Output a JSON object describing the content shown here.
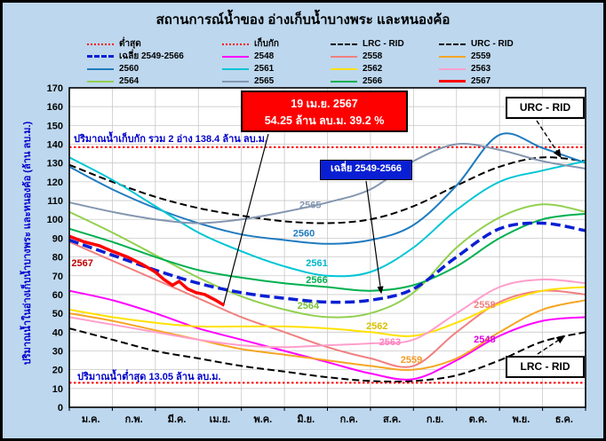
{
  "title": "สถานการณ์น้ำของ อ่างเก็บน้ำบางพระ และหนองค้อ",
  "colors": {
    "background": "#bdd7ee",
    "callout": "#ff0000",
    "average_box": "#0a1fd4",
    "axis_label_blue": "#0000cd"
  },
  "annotations": {
    "callout": {
      "line1": "19 เม.ย. 2567",
      "line2": "54.25 ล้าน ลบ.ม. 39.2 %"
    },
    "avg_box": "เฉลี่ย 2549-2566",
    "urc_box": "URC - RID",
    "lrc_box": "LRC - RID",
    "capacity_label": "ปริมาณน้ำเก็บกัก รวม 2 อ่าง 138.4 ล้าน ลบ.ม.",
    "min_label": "ปริมาณน้ำต่ำสุด 13.05 ล้าน ลบ.ม."
  },
  "chart_data": {
    "type": "line",
    "title": "สถานการณ์น้ำของ อ่างเก็บน้ำบางพระ และหนองค้อ",
    "xlabel": "",
    "ylabel": "ปริมาณน้ำในอ่างเก็บน้ำบางพระ และหนองค้อ (ล้าน ลบ.ม.)",
    "ylim": [
      0,
      170
    ],
    "ytick_step": 10,
    "grid": true,
    "legend_position": "top",
    "categories": [
      "ม.ค.",
      "ก.พ.",
      "มี.ค.",
      "เม.ย.",
      "พ.ค.",
      "มิ.ย.",
      "ก.ค.",
      "ส.ค.",
      "ก.ย.",
      "ต.ค.",
      "พ.ย.",
      "ธ.ค."
    ],
    "series": [
      {
        "name": "ต่ำสุด",
        "color": "#ff0000",
        "dash": "dot",
        "width": 2,
        "x": [
          0,
          12
        ],
        "values": [
          13.05,
          13.05
        ]
      },
      {
        "name": "เก็บกัก",
        "color": "#ff0000",
        "dash": "dot",
        "width": 2,
        "x": [
          0,
          12
        ],
        "values": [
          138.4,
          138.4
        ]
      },
      {
        "name": "LRC - RID",
        "color": "#000000",
        "dash": "dash",
        "width": 2,
        "values": [
          42,
          36,
          30,
          26,
          22,
          19,
          16,
          14,
          14,
          17,
          25,
          35,
          40
        ]
      },
      {
        "name": "URC - RID",
        "color": "#000000",
        "dash": "dash",
        "width": 2,
        "values": [
          129,
          120,
          112,
          106,
          102,
          99,
          98,
          100,
          107,
          118,
          128,
          133,
          131
        ]
      },
      {
        "name": "เฉลี่ย 2549-2566",
        "color": "#0a1fd4",
        "dash": "longdash",
        "width": 3.5,
        "top": true,
        "values": [
          89,
          81,
          73,
          66,
          61,
          58,
          56,
          57,
          63,
          80,
          95,
          98,
          94
        ]
      },
      {
        "name": "2548",
        "color": "#ff00ff",
        "dash": "solid",
        "width": 2,
        "values": [
          62,
          57,
          50,
          42,
          36,
          30,
          24,
          18,
          15,
          25,
          38,
          46,
          48
        ]
      },
      {
        "name": "2558",
        "color": "#f08080",
        "dash": "solid",
        "width": 2,
        "values": [
          88,
          78,
          68,
          58,
          48,
          40,
          32,
          26,
          22,
          40,
          56,
          62,
          60
        ]
      },
      {
        "name": "2559",
        "color": "#f5a623",
        "dash": "solid",
        "width": 2,
        "values": [
          50,
          46,
          41,
          36,
          31,
          28,
          25,
          22,
          20,
          26,
          40,
          52,
          57
        ]
      },
      {
        "name": "2560",
        "color": "#1f7bbf",
        "dash": "solid",
        "width": 2,
        "values": [
          128,
          116,
          106,
          98,
          92,
          89,
          87,
          89,
          97,
          118,
          145,
          138,
          130
        ]
      },
      {
        "name": "2561",
        "color": "#00c5d4",
        "dash": "solid",
        "width": 2,
        "values": [
          133,
          121,
          107,
          93,
          83,
          75,
          70,
          72,
          85,
          105,
          120,
          126,
          131
        ]
      },
      {
        "name": "2562",
        "color": "#ffe100",
        "dash": "solid",
        "width": 2,
        "values": [
          52,
          48,
          45,
          43,
          43,
          43,
          42,
          40,
          38,
          45,
          55,
          62,
          64
        ]
      },
      {
        "name": "2563",
        "color": "#ff9ecb",
        "dash": "solid",
        "width": 2,
        "values": [
          48,
          44,
          40,
          36,
          33,
          32,
          33,
          34,
          36,
          50,
          64,
          68,
          66
        ]
      },
      {
        "name": "2564",
        "color": "#92d050",
        "dash": "solid",
        "width": 2,
        "values": [
          104,
          93,
          81,
          69,
          59,
          52,
          48,
          50,
          61,
          85,
          101,
          108,
          104
        ]
      },
      {
        "name": "2565",
        "color": "#8496b0",
        "dash": "solid",
        "width": 2,
        "values": [
          109,
          104,
          100,
          98,
          100,
          104,
          109,
          116,
          131,
          140,
          137,
          131,
          127
        ]
      },
      {
        "name": "2566",
        "color": "#00b050",
        "dash": "solid",
        "width": 2,
        "values": [
          95,
          88,
          80,
          73,
          69,
          66,
          64,
          62,
          65,
          75,
          90,
          100,
          103
        ]
      },
      {
        "name": "2567",
        "color": "#ff0000",
        "dash": "solid",
        "width": 3.5,
        "top": true,
        "smooth": false,
        "x": [
          0,
          0.35,
          0.7,
          1.0,
          1.35,
          1.7,
          2.0,
          2.2,
          2.4,
          2.55,
          2.75,
          2.95,
          3.15,
          3.4,
          3.6
        ],
        "values": [
          91,
          88,
          86,
          83,
          80,
          76,
          72,
          68,
          65,
          67,
          63,
          61,
          60,
          57,
          54.25
        ]
      }
    ],
    "inline_labels": [
      {
        "text": "2565",
        "x": 5.35,
        "y": 106,
        "color": "#8496b0"
      },
      {
        "text": "2560",
        "x": 5.2,
        "y": 91,
        "color": "#1f7bbf"
      },
      {
        "text": "2561",
        "x": 5.5,
        "y": 75,
        "color": "#00b7cc"
      },
      {
        "text": "2566",
        "x": 5.5,
        "y": 66,
        "color": "#00b050"
      },
      {
        "text": "2564",
        "x": 5.3,
        "y": 52.5,
        "color": "#78c03a"
      },
      {
        "text": "2562",
        "x": 6.9,
        "y": 41.5,
        "color": "#d8c000"
      },
      {
        "text": "2563",
        "x": 7.2,
        "y": 33,
        "color": "#ff7fc0"
      },
      {
        "text": "2559",
        "x": 7.7,
        "y": 23.5,
        "color": "#f59a23"
      },
      {
        "text": "2558",
        "x": 9.4,
        "y": 53,
        "color": "#f08080"
      },
      {
        "text": "2548",
        "x": 9.4,
        "y": 34.5,
        "color": "#e000e0"
      },
      {
        "text": "2567",
        "x": 0.05,
        "y": 75,
        "color": "#c00000"
      }
    ]
  }
}
